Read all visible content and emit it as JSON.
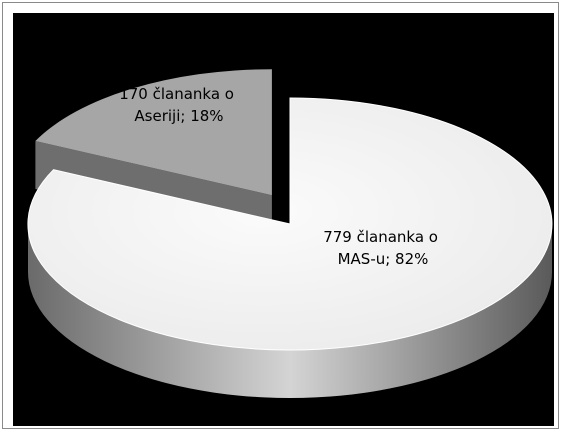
{
  "chart_data": {
    "type": "pie",
    "categories": [
      "MAS-u",
      "Aseriji"
    ],
    "counts": [
      779,
      170
    ],
    "percentages": [
      82,
      18
    ],
    "data_labels": [
      [
        "779 člananka o",
        "MAS-u; 82%"
      ],
      [
        "170 člananka o",
        "Aseriji; 18%"
      ]
    ],
    "exploded": "Aseriji",
    "style": "3d",
    "background": "#000000",
    "colors": {
      "main_top": "#f4f4f4",
      "main_side_dark": "#6a6a6a",
      "main_side_light": "#d4d4d4",
      "small_top": "#a6a6a6",
      "small_side": "#6e6e6e",
      "label": "#000000"
    }
  }
}
